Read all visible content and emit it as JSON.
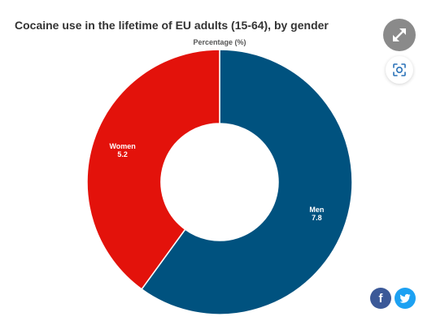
{
  "chart_data": {
    "type": "pie",
    "donut": true,
    "title": "Cocaine use in the lifetime of EU adults (15-64), by gender",
    "subtitle": "Percentage (%)",
    "slices": [
      {
        "label": "Men",
        "value": 7.8,
        "color": "#00527f"
      },
      {
        "label": "Women",
        "value": 5.2,
        "color": "#e3120b"
      }
    ]
  },
  "controls": {
    "expand_icon": "expand-arrows-icon",
    "capture_icon": "screenshot-capture-icon",
    "share": {
      "facebook_glyph": "f",
      "twitter_icon": "twitter-bird-icon"
    }
  }
}
